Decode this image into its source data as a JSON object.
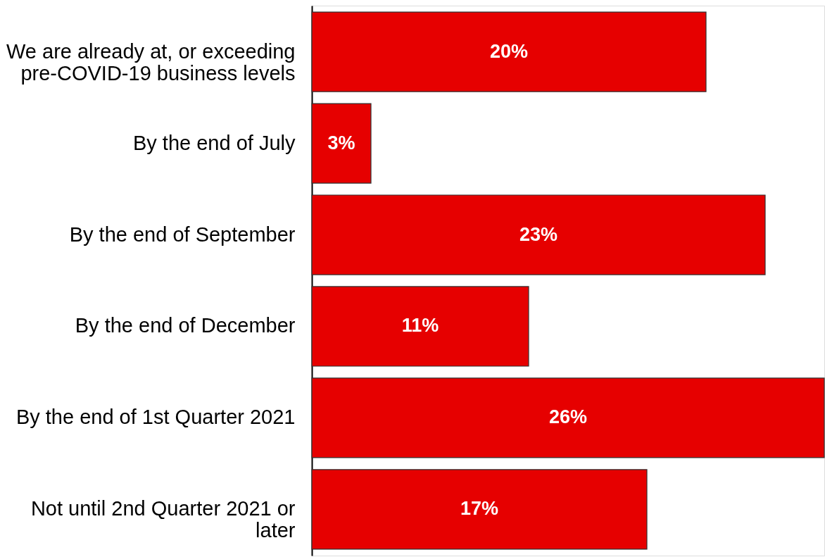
{
  "chart_data": {
    "type": "bar",
    "orientation": "horizontal",
    "categories": [
      "We are already at, or exceeding pre-COVID-19 business levels",
      "By the end of July",
      "By the end of September",
      "By the end of December",
      "By the end of 1st Quarter 2021",
      "Not until 2nd Quarter 2021 or later"
    ],
    "values": [
      20,
      3,
      23,
      11,
      26,
      17
    ],
    "value_labels": [
      "20%",
      "3%",
      "23%",
      "11%",
      "26%",
      "17%"
    ],
    "color": "#e60000"
  }
}
